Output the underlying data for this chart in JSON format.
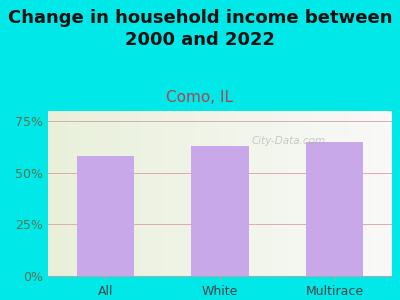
{
  "categories": [
    "All",
    "White",
    "Multirace"
  ],
  "values": [
    58,
    63,
    65
  ],
  "bar_color": "#c8a8e8",
  "title": "Change in household income between\n2000 and 2022",
  "subtitle": "Como, IL",
  "subtitle_color": "#aa4455",
  "title_color": "#111111",
  "bg_color": "#00e8e8",
  "yticks": [
    0,
    25,
    50,
    75
  ],
  "ytick_labels": [
    "0%",
    "25%",
    "50%",
    "75%"
  ],
  "ytick_color": "#557755",
  "watermark": "City-Data.com",
  "title_fontsize": 13,
  "subtitle_fontsize": 11,
  "tick_fontsize": 9,
  "bar_width": 0.5,
  "ylim_max": 80
}
